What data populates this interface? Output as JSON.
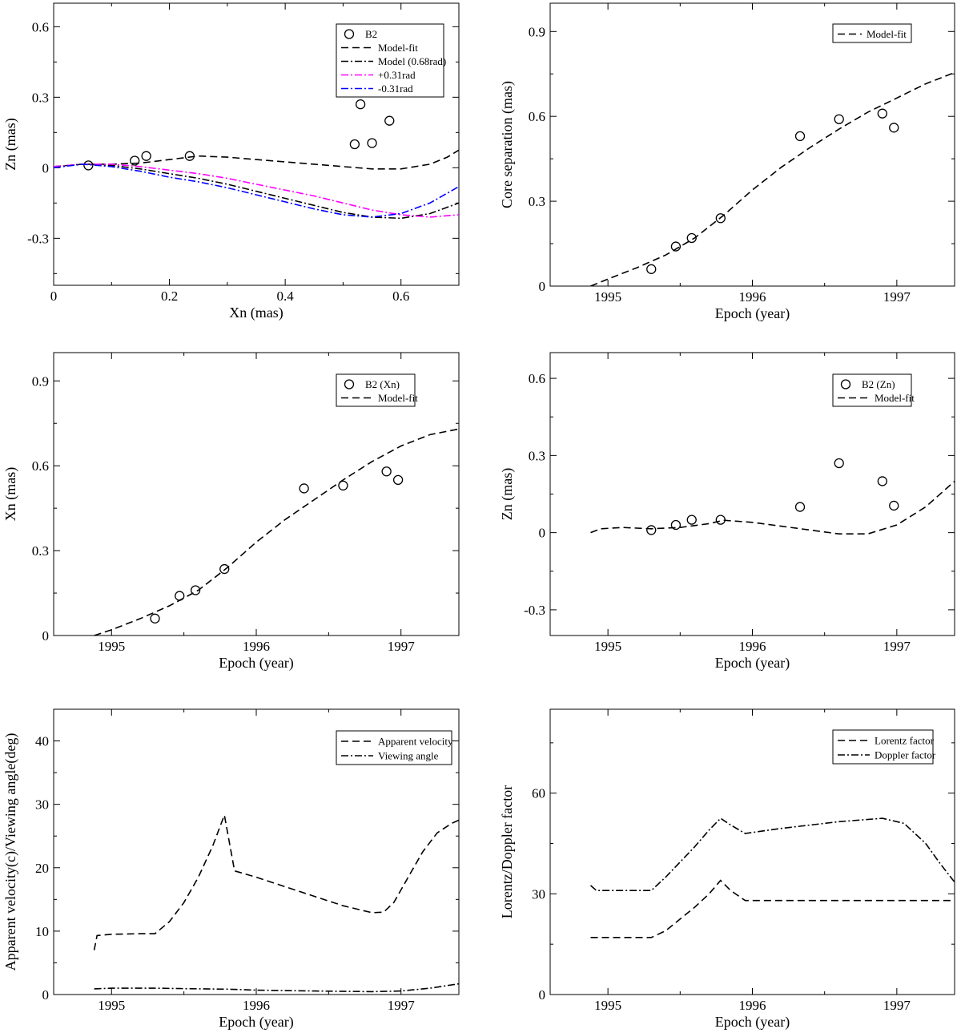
{
  "chart_data": [
    {
      "id": "p1",
      "type": "scatter",
      "xlabel": "Xn (mas)",
      "ylabel": "Zn (mas)",
      "xlim": [
        0,
        0.7
      ],
      "ylim": [
        -0.5,
        0.7
      ],
      "xticks": [
        0,
        0.2,
        0.4,
        0.6
      ],
      "xtick_labels": [
        "0",
        "0.2",
        "0.4",
        "0.6"
      ],
      "yticks": [
        -0.3,
        0,
        0.3,
        0.6
      ],
      "ytick_labels": [
        "-0.3",
        "0",
        "0.3",
        "0.6"
      ],
      "legend_position": "top-right",
      "series": [
        {
          "name": "B2",
          "kind": "points",
          "color": "#000000",
          "x": [
            0.06,
            0.14,
            0.16,
            0.235,
            0.52,
            0.53,
            0.55,
            0.58
          ],
          "y": [
            0.01,
            0.03,
            0.05,
            0.05,
            0.1,
            0.27,
            0.105,
            0.2
          ]
        },
        {
          "name": "Model-fit",
          "kind": "line",
          "dash": "dash",
          "color": "#000000",
          "x": [
            0,
            0.05,
            0.1,
            0.15,
            0.2,
            0.25,
            0.3,
            0.35,
            0.4,
            0.45,
            0.5,
            0.55,
            0.6,
            0.65,
            0.68,
            0.7
          ],
          "y": [
            0.005,
            0.015,
            0.015,
            0.02,
            0.035,
            0.05,
            0.045,
            0.035,
            0.025,
            0.015,
            0.005,
            -0.005,
            -0.005,
            0.015,
            0.045,
            0.075
          ]
        },
        {
          "name": "Model (0.68rad)",
          "kind": "line",
          "dash": "dashdot",
          "color": "#000000",
          "x": [
            0,
            0.05,
            0.1,
            0.15,
            0.2,
            0.25,
            0.3,
            0.35,
            0.4,
            0.45,
            0.5,
            0.55,
            0.6,
            0.65,
            0.7
          ],
          "y": [
            0.005,
            0.015,
            0.01,
            -0.005,
            -0.025,
            -0.045,
            -0.07,
            -0.1,
            -0.13,
            -0.16,
            -0.19,
            -0.21,
            -0.215,
            -0.195,
            -0.15
          ]
        },
        {
          "name": "+0.31rad",
          "kind": "line",
          "dash": "dashdot",
          "color": "#ff00ff",
          "x": [
            0,
            0.05,
            0.1,
            0.15,
            0.2,
            0.25,
            0.3,
            0.35,
            0.4,
            0.45,
            0.5,
            0.55,
            0.6,
            0.65,
            0.7
          ],
          "y": [
            0.005,
            0.015,
            0.015,
            0.005,
            -0.01,
            -0.025,
            -0.045,
            -0.07,
            -0.095,
            -0.12,
            -0.15,
            -0.18,
            -0.2,
            -0.21,
            -0.2
          ]
        },
        {
          "name": "-0.31rad",
          "kind": "line",
          "dash": "dashdot",
          "color": "#0000ff",
          "x": [
            0,
            0.05,
            0.1,
            0.15,
            0.2,
            0.25,
            0.3,
            0.35,
            0.4,
            0.45,
            0.5,
            0.55,
            0.6,
            0.65,
            0.7
          ],
          "y": [
            0,
            0.015,
            0.005,
            -0.015,
            -0.04,
            -0.06,
            -0.085,
            -0.115,
            -0.145,
            -0.175,
            -0.2,
            -0.21,
            -0.195,
            -0.15,
            -0.08
          ]
        }
      ]
    },
    {
      "id": "p2",
      "type": "scatter",
      "xlabel": "Epoch (year)",
      "ylabel": "Core separation (mas)",
      "xlim": [
        1994.6,
        1997.4
      ],
      "ylim": [
        0,
        1.0
      ],
      "xticks": [
        1995,
        1996,
        1997
      ],
      "xtick_labels": [
        "1995",
        "1996",
        "1997"
      ],
      "yticks": [
        0,
        0.3,
        0.6,
        0.9
      ],
      "ytick_labels": [
        "0",
        "0.3",
        "0.6",
        "0.9"
      ],
      "legend_position": "top-right",
      "series": [
        {
          "name": "",
          "kind": "points",
          "color": "#000000",
          "x": [
            1995.3,
            1995.47,
            1995.58,
            1995.78,
            1996.33,
            1996.6,
            1996.9,
            1996.98
          ],
          "y": [
            0.06,
            0.14,
            0.17,
            0.24,
            0.53,
            0.59,
            0.61,
            0.56
          ]
        },
        {
          "name": "Model-fit",
          "kind": "line",
          "dash": "dash",
          "color": "#000000",
          "x": [
            1994.88,
            1995.0,
            1995.2,
            1995.4,
            1995.6,
            1995.8,
            1996.0,
            1996.2,
            1996.4,
            1996.6,
            1996.8,
            1997.0,
            1997.2,
            1997.4
          ],
          "y": [
            0.0,
            0.025,
            0.065,
            0.11,
            0.17,
            0.25,
            0.34,
            0.42,
            0.49,
            0.555,
            0.615,
            0.665,
            0.715,
            0.755
          ]
        }
      ]
    },
    {
      "id": "p3",
      "type": "scatter",
      "xlabel": "Epoch (year)",
      "ylabel": "Xn (mas)",
      "xlim": [
        1994.6,
        1997.4
      ],
      "ylim": [
        0,
        1.0
      ],
      "xticks": [
        1995,
        1996,
        1997
      ],
      "xtick_labels": [
        "1995",
        "1996",
        "1997"
      ],
      "yticks": [
        0,
        0.3,
        0.6,
        0.9
      ],
      "ytick_labels": [
        "0",
        "0.3",
        "0.6",
        "0.9"
      ],
      "legend_position": "top-right",
      "series": [
        {
          "name": "B2 (Xn)",
          "kind": "points",
          "color": "#000000",
          "x": [
            1995.3,
            1995.47,
            1995.58,
            1995.78,
            1996.33,
            1996.6,
            1996.9,
            1996.98
          ],
          "y": [
            0.06,
            0.14,
            0.16,
            0.235,
            0.52,
            0.53,
            0.58,
            0.55
          ]
        },
        {
          "name": "Model-fit",
          "kind": "line",
          "dash": "dash",
          "color": "#000000",
          "x": [
            1994.88,
            1995.0,
            1995.2,
            1995.4,
            1995.6,
            1995.8,
            1996.0,
            1996.2,
            1996.4,
            1996.6,
            1996.8,
            1997.0,
            1997.2,
            1997.4
          ],
          "y": [
            0.0,
            0.02,
            0.06,
            0.105,
            0.16,
            0.24,
            0.33,
            0.41,
            0.48,
            0.55,
            0.615,
            0.67,
            0.71,
            0.73
          ]
        }
      ]
    },
    {
      "id": "p4",
      "type": "scatter",
      "xlabel": "Epoch (year)",
      "ylabel": "Zn (mas)",
      "xlim": [
        1994.6,
        1997.4
      ],
      "ylim": [
        -0.4,
        0.7
      ],
      "xticks": [
        1995,
        1996,
        1997
      ],
      "xtick_labels": [
        "1995",
        "1996",
        "1997"
      ],
      "yticks": [
        -0.3,
        0,
        0.3,
        0.6
      ],
      "ytick_labels": [
        "-0.3",
        "0",
        "0.3",
        "0.6"
      ],
      "legend_position": "top-right",
      "series": [
        {
          "name": "B2 (Zn)",
          "kind": "points",
          "color": "#000000",
          "x": [
            1995.3,
            1995.47,
            1995.58,
            1995.78,
            1996.33,
            1996.6,
            1996.9,
            1996.98
          ],
          "y": [
            0.01,
            0.03,
            0.05,
            0.05,
            0.1,
            0.27,
            0.2,
            0.105
          ]
        },
        {
          "name": "Model-fit",
          "kind": "line",
          "dash": "dash",
          "color": "#000000",
          "x": [
            1994.88,
            1994.95,
            1995.1,
            1995.3,
            1995.5,
            1995.7,
            1995.8,
            1996.0,
            1996.2,
            1996.4,
            1996.6,
            1996.8,
            1997.0,
            1997.2,
            1997.4
          ],
          "y": [
            0.0,
            0.015,
            0.02,
            0.015,
            0.02,
            0.035,
            0.048,
            0.04,
            0.025,
            0.01,
            -0.005,
            -0.005,
            0.03,
            0.1,
            0.2
          ]
        }
      ]
    },
    {
      "id": "p5",
      "type": "line",
      "xlabel": "Epoch (year)",
      "ylabel": "Apparent velocity(c)/Viewing angle(deg)",
      "xlim": [
        1994.6,
        1997.4
      ],
      "ylim": [
        0,
        45
      ],
      "xticks": [
        1995,
        1996,
        1997
      ],
      "xtick_labels": [
        "1995",
        "1996",
        "1997"
      ],
      "yticks": [
        0,
        10,
        20,
        30,
        40
      ],
      "ytick_labels": [
        "0",
        "10",
        "20",
        "30",
        "40"
      ],
      "legend_position": "top-right",
      "series": [
        {
          "name": "Apparent velocity",
          "kind": "line",
          "dash": "dash",
          "color": "#000000",
          "x": [
            1994.88,
            1994.9,
            1995.0,
            1995.2,
            1995.3,
            1995.4,
            1995.5,
            1995.6,
            1995.7,
            1995.78,
            1995.85,
            1996.0,
            1996.2,
            1996.4,
            1996.6,
            1996.8,
            1996.88,
            1996.95,
            1997.05,
            1997.15,
            1997.25,
            1997.35,
            1997.4
          ],
          "y": [
            7,
            9.3,
            9.5,
            9.6,
            9.6,
            11.5,
            14.5,
            18.5,
            23.5,
            28.3,
            19.5,
            18.5,
            17,
            15.5,
            14,
            12.9,
            13,
            14.5,
            18.5,
            22.5,
            25.5,
            27,
            27.5
          ]
        },
        {
          "name": "Viewing angle",
          "kind": "line",
          "dash": "dashdot",
          "color": "#000000",
          "x": [
            1994.88,
            1995.0,
            1995.3,
            1995.6,
            1995.8,
            1996.0,
            1996.4,
            1996.8,
            1997.0,
            1997.2,
            1997.4
          ],
          "y": [
            0.9,
            1.0,
            1.0,
            0.9,
            0.85,
            0.7,
            0.55,
            0.45,
            0.55,
            1.0,
            1.7
          ]
        }
      ]
    },
    {
      "id": "p6",
      "type": "line",
      "xlabel": "Epoch (year)",
      "ylabel": "Lorentz/Doppler factor",
      "xlim": [
        1994.6,
        1997.4
      ],
      "ylim": [
        0,
        85
      ],
      "xticks": [
        1995,
        1996,
        1997
      ],
      "xtick_labels": [
        "1995",
        "1996",
        "1997"
      ],
      "yticks": [
        0,
        30,
        60
      ],
      "ytick_labels": [
        "0",
        "30",
        "60"
      ],
      "legend_position": "top-right",
      "series": [
        {
          "name": "Lorentz factor",
          "kind": "line",
          "dash": "dash",
          "color": "#000000",
          "x": [
            1994.88,
            1995.0,
            1995.3,
            1995.4,
            1995.5,
            1995.6,
            1995.7,
            1995.78,
            1995.85,
            1995.95,
            1996.2,
            1996.6,
            1997.0,
            1997.4
          ],
          "y": [
            17,
            17,
            17,
            19,
            22.5,
            26,
            30,
            34,
            31,
            28,
            28,
            28,
            28,
            28
          ]
        },
        {
          "name": "Doppler factor",
          "kind": "line",
          "dash": "dashdot",
          "color": "#000000",
          "x": [
            1994.88,
            1994.92,
            1995.0,
            1995.3,
            1995.4,
            1995.5,
            1995.6,
            1995.7,
            1995.78,
            1995.85,
            1995.95,
            1996.2,
            1996.6,
            1996.9,
            1997.05,
            1997.2,
            1997.3,
            1997.4
          ],
          "y": [
            32.5,
            31,
            31,
            31,
            35,
            39.5,
            44,
            49,
            52.5,
            50.5,
            48,
            49.5,
            51.5,
            52.5,
            51,
            45,
            39,
            33.5
          ]
        }
      ]
    }
  ]
}
